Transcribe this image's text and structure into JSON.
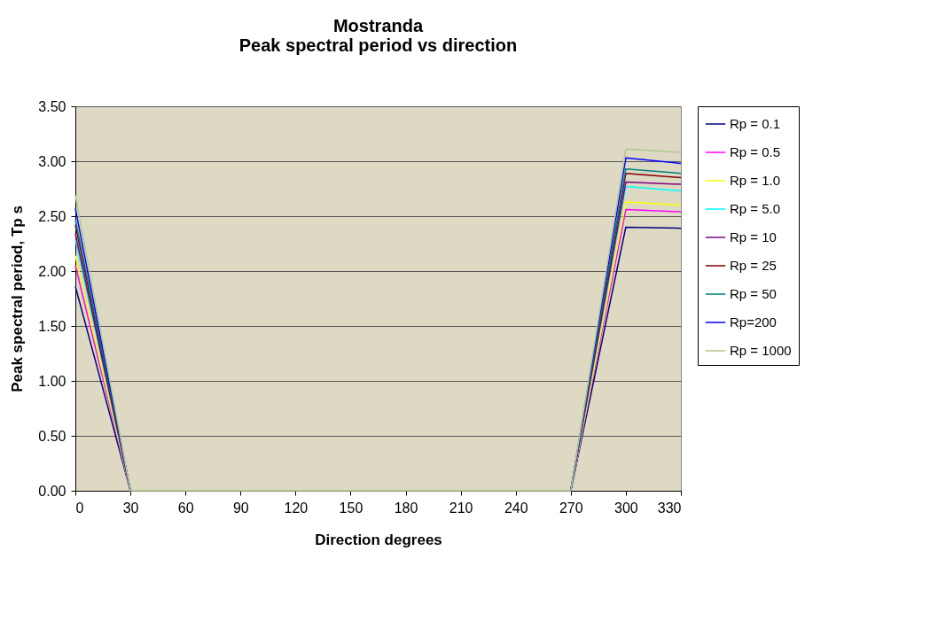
{
  "chart_data": {
    "type": "line",
    "title": [
      "Mostranda",
      "Peak spectral period vs direction"
    ],
    "xlabel": "Direction  degrees",
    "ylabel": "Peak spectral period, Tp s",
    "x": [
      0,
      30,
      60,
      90,
      120,
      150,
      180,
      210,
      240,
      270,
      300,
      330
    ],
    "xlim": [
      0,
      330
    ],
    "xticks": [
      0,
      30,
      60,
      90,
      120,
      150,
      180,
      210,
      240,
      270,
      300,
      330
    ],
    "ylim": [
      0,
      3.5
    ],
    "yticks": [
      {
        "value": 0,
        "label": "0.00"
      },
      {
        "value": 0.5,
        "label": "0.50"
      },
      {
        "value": 1,
        "label": "1.00"
      },
      {
        "value": 1.5,
        "label": "1.50"
      },
      {
        "value": 2,
        "label": "2.00"
      },
      {
        "value": 2.5,
        "label": "2.50"
      },
      {
        "value": 3,
        "label": "3.00"
      },
      {
        "value": 3.5,
        "label": "3.50"
      }
    ],
    "grid": "y",
    "legend": "right",
    "line_style": "solid",
    "series": [
      {
        "name": "Rp = 0.1",
        "color": "#000080",
        "values": [
          1.86,
          0,
          null,
          null,
          null,
          null,
          null,
          null,
          null,
          0,
          2.4,
          2.39
        ]
      },
      {
        "name": "Rp = 0.5",
        "color": "#ff00ff",
        "values": [
          2.05,
          0,
          null,
          null,
          null,
          null,
          null,
          null,
          null,
          0,
          2.56,
          2.54
        ]
      },
      {
        "name": "Rp = 1.0",
        "color": "#ffff00",
        "values": [
          2.14,
          0,
          null,
          null,
          null,
          null,
          null,
          null,
          null,
          0,
          2.63,
          2.6
        ]
      },
      {
        "name": "Rp = 5.0",
        "color": "#00ffff",
        "values": [
          2.29,
          0,
          null,
          null,
          null,
          null,
          null,
          null,
          null,
          0,
          2.77,
          2.73
        ]
      },
      {
        "name": "Rp = 10",
        "color": "#800080",
        "values": [
          2.34,
          0,
          null,
          null,
          null,
          null,
          null,
          null,
          null,
          0,
          2.81,
          2.79
        ]
      },
      {
        "name": "Rp = 25",
        "color": "#800000",
        "values": [
          2.42,
          0,
          null,
          null,
          null,
          null,
          null,
          null,
          null,
          0,
          2.89,
          2.85
        ]
      },
      {
        "name": "Rp = 50",
        "color": "#008080",
        "values": [
          2.47,
          0,
          null,
          null,
          null,
          null,
          null,
          null,
          null,
          0,
          2.93,
          2.89
        ]
      },
      {
        "name": "Rp=200",
        "color": "#0000ff",
        "values": [
          2.57,
          0,
          null,
          null,
          null,
          null,
          null,
          null,
          null,
          0,
          3.03,
          2.98
        ]
      },
      {
        "name": "Rp = 1000",
        "color": "#b3c78e",
        "values": [
          2.69,
          0,
          0,
          0,
          0,
          0,
          0,
          0,
          0,
          0,
          3.11,
          3.08
        ]
      }
    ]
  }
}
